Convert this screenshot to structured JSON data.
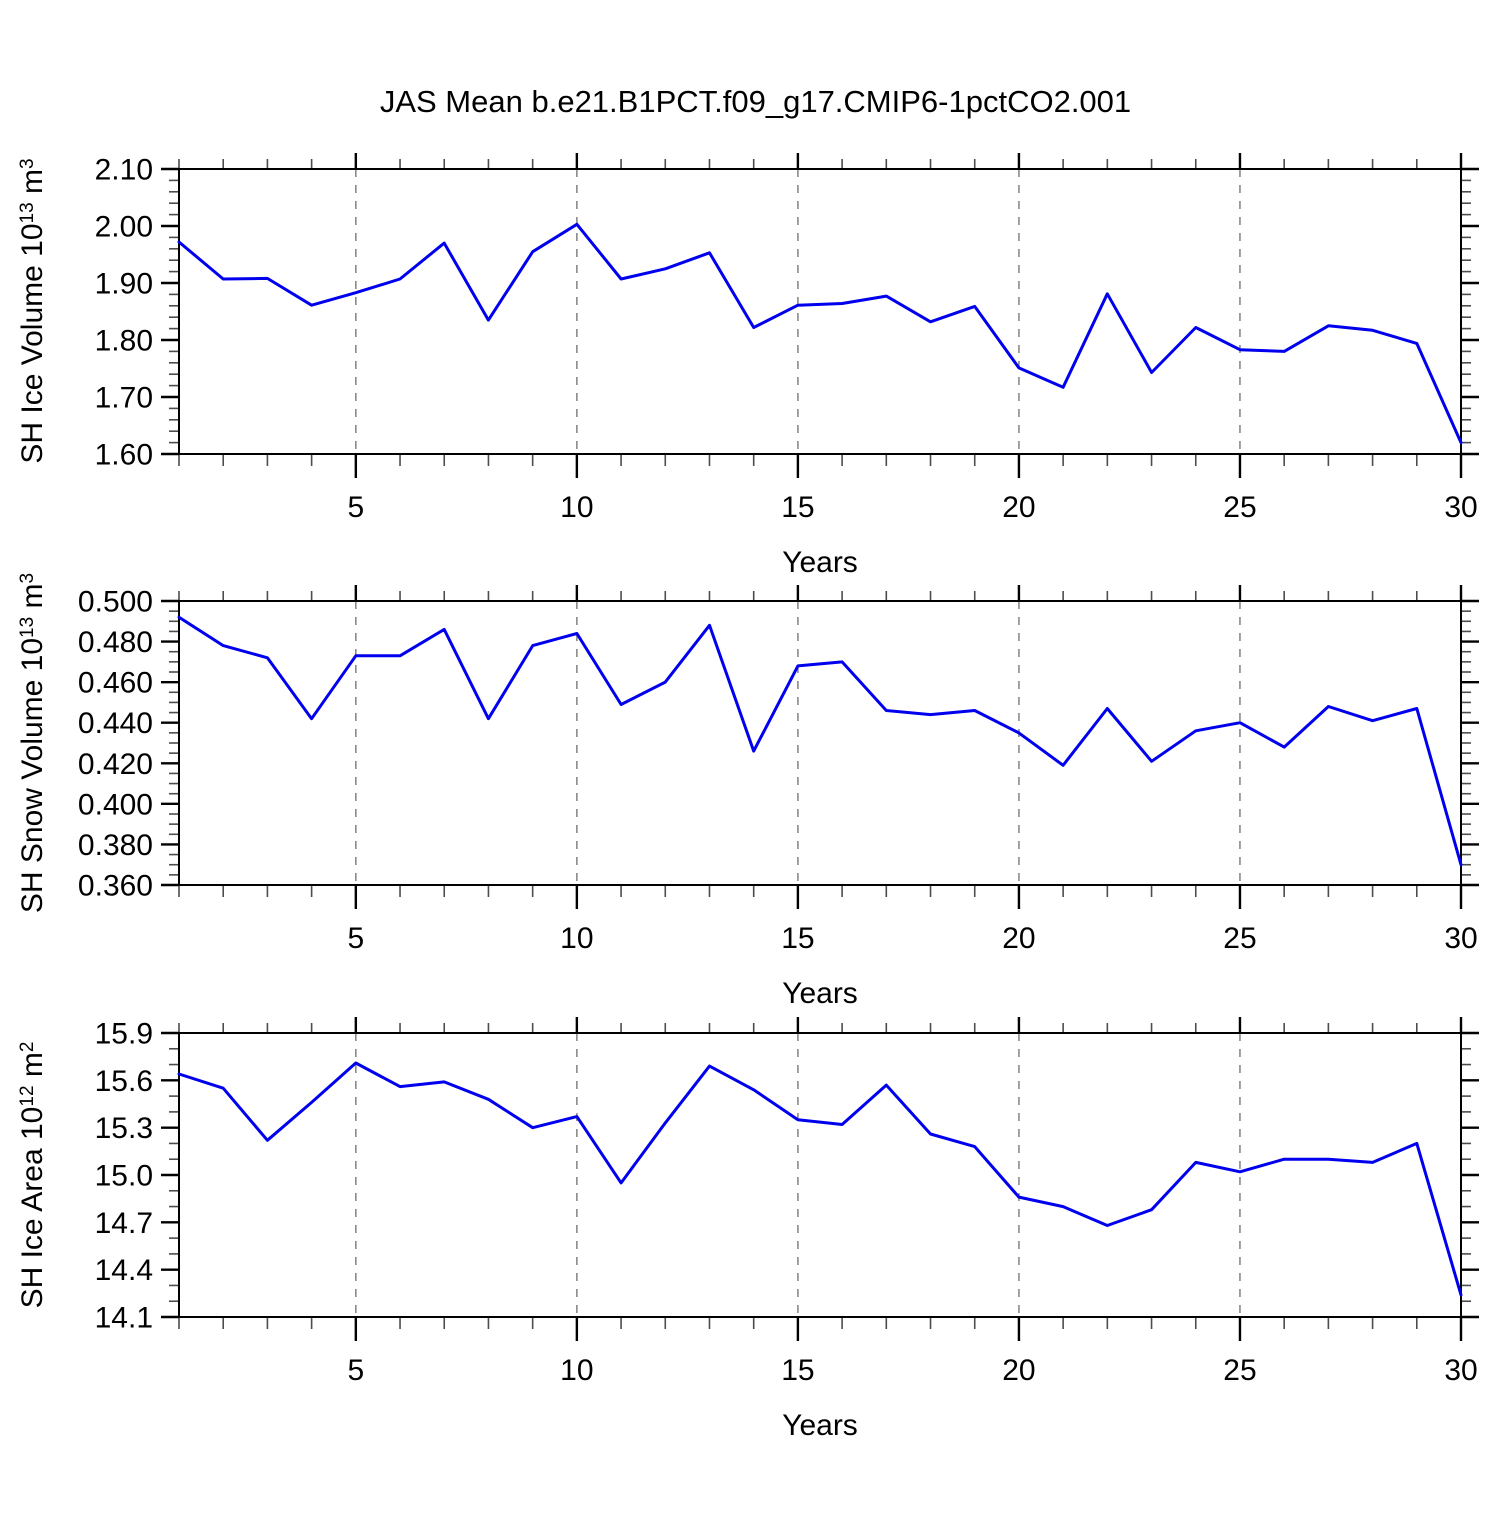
{
  "title": "JAS Mean b.e21.B1PCT.f09_g17.CMIP6-1pctCO2.001",
  "xlabel": "Years",
  "colors": {
    "line": "#0000ee",
    "grid": "#828282",
    "axis": "#000000",
    "minor_tick": "#4d4d4d",
    "background": "#ffffff"
  },
  "chart_data": [
    {
      "type": "line",
      "name": "sh-ice-volume",
      "ylabel_prefix": "SH Ice Volume 10",
      "ylabel_power": "13",
      "ylabel_unit": " m",
      "ylabel_unit_power": "3",
      "xlabel": "Years",
      "xlim": [
        1,
        30
      ],
      "ylim": [
        1.6,
        2.1
      ],
      "x": [
        1,
        2,
        3,
        4,
        5,
        6,
        7,
        8,
        9,
        10,
        11,
        12,
        13,
        14,
        15,
        16,
        17,
        18,
        19,
        20,
        21,
        22,
        23,
        24,
        25,
        26,
        27,
        28,
        29,
        30
      ],
      "values": [
        1.972,
        1.907,
        1.908,
        1.861,
        1.883,
        1.907,
        1.97,
        1.835,
        1.955,
        2.003,
        1.907,
        1.925,
        1.953,
        1.822,
        1.861,
        1.864,
        1.877,
        1.832,
        1.859,
        1.751,
        1.717,
        1.881,
        1.743,
        1.822,
        1.783,
        1.78,
        1.825,
        1.817,
        1.794,
        1.62
      ],
      "yticks": {
        "values": [
          2.1,
          2.0,
          1.9,
          1.8,
          1.7,
          1.6
        ],
        "labels": [
          "2.10",
          "2.00",
          "1.90",
          "1.80",
          "1.70",
          "1.60"
        ]
      },
      "y_minor_step": 0.02,
      "xticks": {
        "values": [
          5,
          10,
          15,
          20,
          25,
          30
        ],
        "labels": [
          "5",
          "10",
          "15",
          "20",
          "25",
          "30"
        ]
      },
      "x_minor_step": 1,
      "x_gridlines": [
        5,
        10,
        15,
        20,
        25
      ]
    },
    {
      "type": "line",
      "name": "sh-snow-volume",
      "ylabel_prefix": "SH Snow Volume 10",
      "ylabel_power": "13",
      "ylabel_unit": " m",
      "ylabel_unit_power": "3",
      "xlabel": "Years",
      "xlim": [
        1,
        30
      ],
      "ylim": [
        0.36,
        0.5
      ],
      "x": [
        1,
        2,
        3,
        4,
        5,
        6,
        7,
        8,
        9,
        10,
        11,
        12,
        13,
        14,
        15,
        16,
        17,
        18,
        19,
        20,
        21,
        22,
        23,
        24,
        25,
        26,
        27,
        28,
        29,
        30
      ],
      "values": [
        0.492,
        0.478,
        0.472,
        0.442,
        0.473,
        0.473,
        0.486,
        0.442,
        0.478,
        0.484,
        0.449,
        0.46,
        0.488,
        0.426,
        0.468,
        0.47,
        0.446,
        0.444,
        0.446,
        0.435,
        0.419,
        0.447,
        0.421,
        0.436,
        0.44,
        0.428,
        0.448,
        0.441,
        0.447,
        0.37
      ],
      "yticks": {
        "values": [
          0.5,
          0.48,
          0.46,
          0.44,
          0.42,
          0.4,
          0.38,
          0.36
        ],
        "labels": [
          "0.500",
          "0.480",
          "0.460",
          "0.440",
          "0.420",
          "0.400",
          "0.380",
          "0.360"
        ]
      },
      "y_minor_step": 0.005,
      "xticks": {
        "values": [
          5,
          10,
          15,
          20,
          25,
          30
        ],
        "labels": [
          "5",
          "10",
          "15",
          "20",
          "25",
          "30"
        ]
      },
      "x_minor_step": 1,
      "x_gridlines": [
        5,
        10,
        15,
        20,
        25
      ]
    },
    {
      "type": "line",
      "name": "sh-ice-area",
      "ylabel_prefix": "SH Ice Area 10",
      "ylabel_power": "12",
      "ylabel_unit": " m",
      "ylabel_unit_power": "2",
      "xlabel": "Years",
      "xlim": [
        1,
        30
      ],
      "ylim": [
        14.1,
        15.9
      ],
      "x": [
        1,
        2,
        3,
        4,
        5,
        6,
        7,
        8,
        9,
        10,
        11,
        12,
        13,
        14,
        15,
        16,
        17,
        18,
        19,
        20,
        21,
        22,
        23,
        24,
        25,
        26,
        27,
        28,
        29,
        30
      ],
      "values": [
        15.64,
        15.55,
        15.22,
        15.46,
        15.71,
        15.56,
        15.59,
        15.48,
        15.3,
        15.37,
        14.95,
        15.33,
        15.69,
        15.54,
        15.35,
        15.32,
        15.57,
        15.26,
        15.18,
        14.86,
        14.8,
        14.68,
        14.78,
        15.08,
        15.02,
        15.1,
        15.1,
        15.08,
        15.2,
        14.24
      ],
      "yticks": {
        "values": [
          15.9,
          15.6,
          15.3,
          15.0,
          14.7,
          14.4,
          14.1
        ],
        "labels": [
          "15.9",
          "15.6",
          "15.3",
          "15.0",
          "14.7",
          "14.4",
          "14.1"
        ]
      },
      "y_minor_step": 0.1,
      "xticks": {
        "values": [
          5,
          10,
          15,
          20,
          25,
          30
        ],
        "labels": [
          "5",
          "10",
          "15",
          "20",
          "25",
          "30"
        ]
      },
      "x_minor_step": 1,
      "x_gridlines": [
        5,
        10,
        15,
        20,
        25
      ]
    }
  ]
}
